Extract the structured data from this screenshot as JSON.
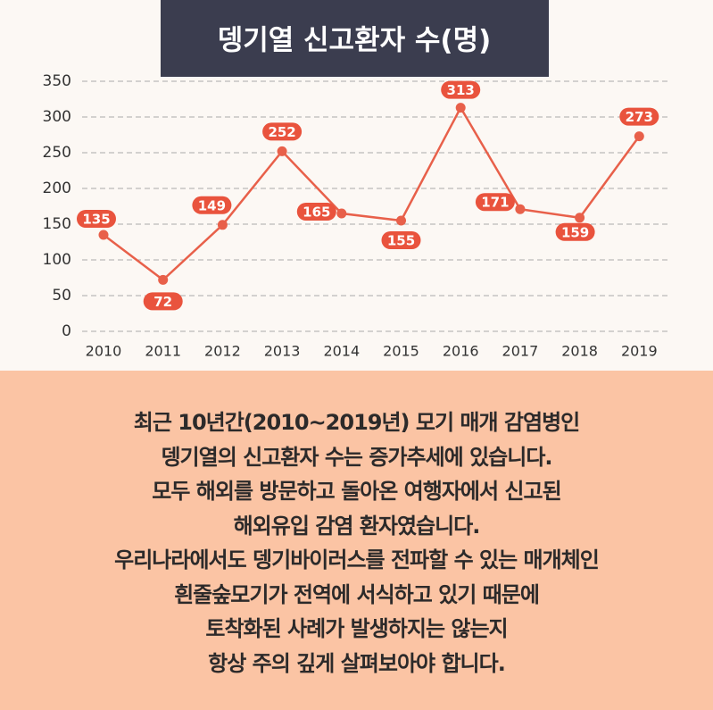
{
  "chart_data": {
    "type": "line",
    "title": "뎅기열 신고환자 수(명)",
    "categories": [
      "2010",
      "2011",
      "2012",
      "2013",
      "2014",
      "2015",
      "2016",
      "2017",
      "2018",
      "2019"
    ],
    "values": [
      135,
      72,
      149,
      252,
      165,
      155,
      313,
      171,
      159,
      273
    ],
    "color": "#e8604a",
    "ylim": [
      0,
      350
    ],
    "yticks": [
      0,
      50,
      100,
      150,
      200,
      250,
      300,
      350
    ],
    "grid": true
  },
  "body": {
    "lines": [
      "최근 10년간(2010~2019년) 모기 매개 감염병인",
      "뎅기열의 신고환자 수는 증가추세에 있습니다.",
      "모두 해외를 방문하고 돌아온 여행자에서 신고된",
      "해외유입 감염 환자였습니다.",
      "우리나라에서도 뎅기바이러스를 전파할 수 있는 매개체인",
      "흰줄숲모기가 전역에 서식하고 있기 때문에",
      "토착화된 사례가 발생하지는 않는지",
      "항상 주의 깊게 살펴보아야 합니다."
    ]
  }
}
